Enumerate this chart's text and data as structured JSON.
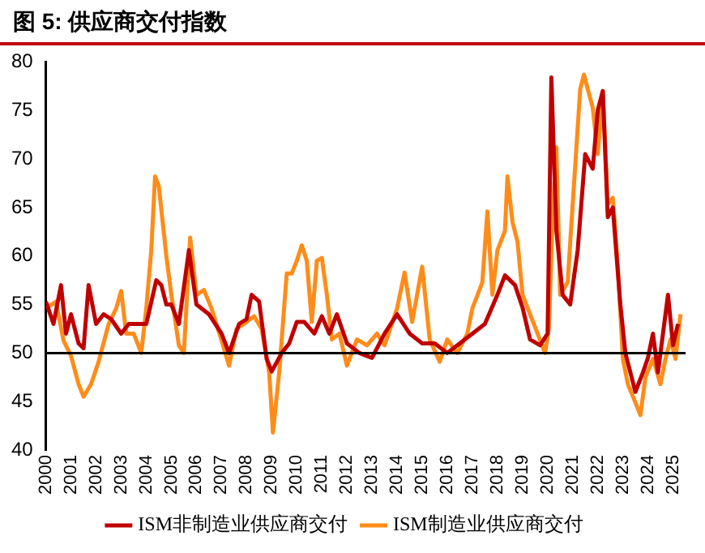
{
  "chart_data": {
    "type": "line",
    "title": "图 5: 供应商交付指数",
    "xlim": [
      2000,
      2025.5
    ],
    "xticks": [
      2000,
      2001,
      2002,
      2003,
      2004,
      2005,
      2006,
      2007,
      2008,
      2009,
      2010,
      2011,
      2012,
      2013,
      2014,
      2015,
      2016,
      2017,
      2018,
      2019,
      2020,
      2021,
      2022,
      2023,
      2024,
      2025
    ],
    "ylim": [
      40,
      80
    ],
    "yticks": [
      40,
      45,
      50,
      55,
      60,
      65,
      70,
      75,
      80
    ],
    "grid": false,
    "legend": "bottom",
    "line_style": "solid",
    "marker": "none",
    "ref_lines": [
      {
        "axis": "y",
        "value": 50,
        "color": "#000000"
      }
    ],
    "series": [
      {
        "name": "ISM非制造业供应商交付",
        "color": "#c00000",
        "x": [
          2000,
          2000.3,
          2000.6,
          2000.8,
          2001,
          2001.3,
          2001.5,
          2001.7,
          2002,
          2002.3,
          2002.6,
          2003,
          2003.3,
          2003.6,
          2004,
          2004.4,
          2004.6,
          2004.8,
          2005,
          2005.3,
          2005.7,
          2006,
          2006.5,
          2007,
          2007.3,
          2007.7,
          2008,
          2008.2,
          2008.5,
          2008.8,
          2009,
          2009.4,
          2009.7,
          2010,
          2010.3,
          2010.7,
          2011,
          2011.3,
          2011.6,
          2012,
          2012.5,
          2013,
          2013.5,
          2014,
          2014.5,
          2015,
          2015.5,
          2016,
          2016.5,
          2017,
          2017.5,
          2018,
          2018.3,
          2018.7,
          2019,
          2019.3,
          2019.7,
          2020,
          2020.15,
          2020.35,
          2020.6,
          2020.9,
          2021.2,
          2021.5,
          2021.8,
          2022,
          2022.2,
          2022.4,
          2022.6,
          2022.9,
          2023.1,
          2023.3,
          2023.5,
          2023.8,
          2024,
          2024.2,
          2024.4,
          2024.6,
          2024.8,
          2025,
          2025.2
        ],
        "values": [
          55.3,
          53,
          57,
          52,
          54,
          51,
          50.5,
          57,
          53,
          54,
          53.5,
          52,
          53,
          53,
          53,
          57.5,
          57,
          55,
          55,
          53,
          60.6,
          55,
          54,
          52,
          50,
          53,
          53.5,
          56,
          55.3,
          49.4,
          48.1,
          50,
          51,
          53.2,
          53.2,
          52,
          53.8,
          52,
          54,
          51,
          50,
          49.5,
          52,
          54,
          52,
          51,
          51,
          50,
          51,
          52,
          53,
          56,
          58,
          57,
          54.7,
          51.4,
          50.8,
          52,
          78.4,
          62.6,
          56,
          55,
          60.6,
          70.5,
          69,
          75,
          77,
          64,
          65,
          55,
          50,
          48,
          46,
          48,
          49.5,
          52,
          48,
          52,
          56,
          50.8,
          53
        ]
      },
      {
        "name": "ISM制造业供应商交付",
        "color": "#ff8c1a",
        "x": [
          2000,
          2000.4,
          2000.7,
          2001,
          2001.3,
          2001.5,
          2001.8,
          2002.1,
          2002.5,
          2002.8,
          2003,
          2003.2,
          2003.5,
          2003.8,
          2004,
          2004.2,
          2004.35,
          2004.5,
          2004.8,
          2005,
          2005.3,
          2005.5,
          2005.75,
          2006,
          2006.3,
          2006.6,
          2007,
          2007.3,
          2007.6,
          2008,
          2008.3,
          2008.6,
          2008.9,
          2009.05,
          2009.3,
          2009.6,
          2009.8,
          2010,
          2010.2,
          2010.4,
          2010.6,
          2010.8,
          2011,
          2011.2,
          2011.4,
          2011.7,
          2012,
          2012.4,
          2012.8,
          2013.2,
          2013.5,
          2014,
          2014.3,
          2014.6,
          2015,
          2015.3,
          2015.7,
          2016,
          2016.4,
          2016.8,
          2017,
          2017.4,
          2017.6,
          2017.8,
          2018,
          2018.3,
          2018.4,
          2018.6,
          2018.8,
          2019,
          2019.3,
          2019.6,
          2019.9,
          2020.05,
          2020.2,
          2020.35,
          2020.5,
          2020.8,
          2021,
          2021.3,
          2021.45,
          2021.6,
          2021.8,
          2022,
          2022.2,
          2022.4,
          2022.6,
          2022.8,
          2023,
          2023.2,
          2023.5,
          2023.7,
          2023.9,
          2024.2,
          2024.5,
          2024.7,
          2024.9,
          2025.1,
          2025.3
        ],
        "values": [
          54.6,
          55.3,
          51.3,
          49.7,
          46.8,
          45.5,
          46.8,
          49.1,
          53,
          54.6,
          56.4,
          52,
          52,
          50,
          54.6,
          60.6,
          68.2,
          67.2,
          60,
          56,
          50.8,
          50,
          61.9,
          56,
          56.5,
          54.6,
          51.3,
          48.7,
          52.5,
          53.2,
          53.8,
          52.5,
          48,
          41.8,
          48,
          58.2,
          58.2,
          59.5,
          61.1,
          59.5,
          53.2,
          59.5,
          59.8,
          56,
          51.4,
          52,
          48.7,
          51.4,
          50.8,
          52,
          50.8,
          54.6,
          58.3,
          53.2,
          58.9,
          51.4,
          49.1,
          51.4,
          50,
          52,
          54.6,
          57.3,
          64.6,
          56,
          60.6,
          62.6,
          68.2,
          63.5,
          61.5,
          56,
          54,
          52,
          50,
          52.5,
          64,
          71.2,
          56,
          57.3,
          65.3,
          77.2,
          78.7,
          77.2,
          75.3,
          70.5,
          77,
          65.3,
          66,
          59,
          49.4,
          46.8,
          44.9,
          43.6,
          47.5,
          49.4,
          46.8,
          49.4,
          51.4,
          49.4,
          54
        ]
      }
    ]
  }
}
